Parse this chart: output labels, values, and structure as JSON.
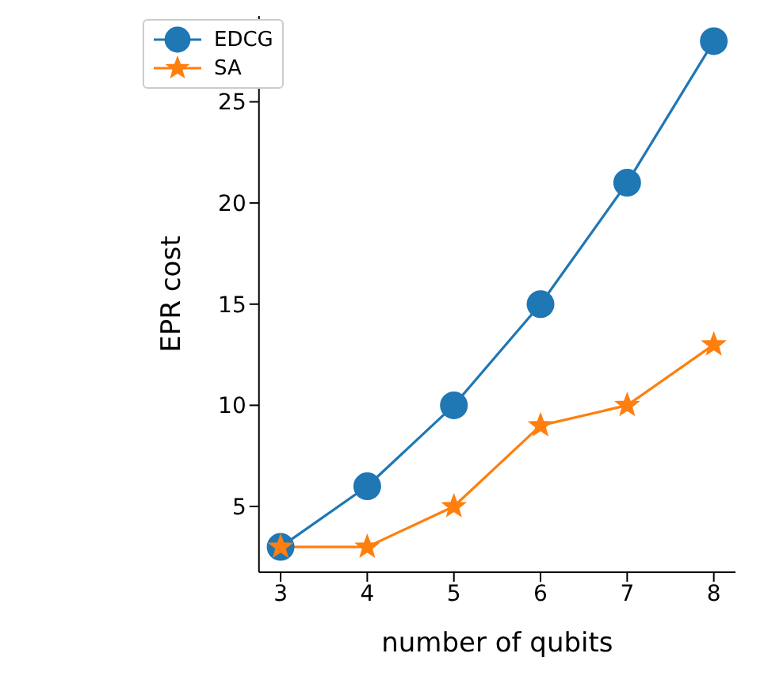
{
  "chart_data": {
    "type": "line",
    "xlabel": "number of qubits",
    "ylabel": "EPR cost",
    "x": [
      3,
      4,
      5,
      6,
      7,
      8
    ],
    "series": [
      {
        "name": "EDCG",
        "color": "#1f77b4",
        "values": [
          3,
          6,
          10,
          15,
          21,
          28
        ],
        "marker": "circle"
      },
      {
        "name": "SA",
        "color": "#ff7f0e",
        "values": [
          3,
          3,
          5,
          9,
          10,
          13
        ],
        "marker": "star"
      }
    ],
    "xlim": [
      2.75,
      8.25
    ],
    "xticks": [
      3,
      4,
      5,
      6,
      7,
      8
    ],
    "ylim": [
      1.75,
      29.25
    ],
    "yticks": [
      5,
      10,
      15,
      20,
      25
    ],
    "grid": false,
    "legend": "top left",
    "line_style": "solid"
  }
}
